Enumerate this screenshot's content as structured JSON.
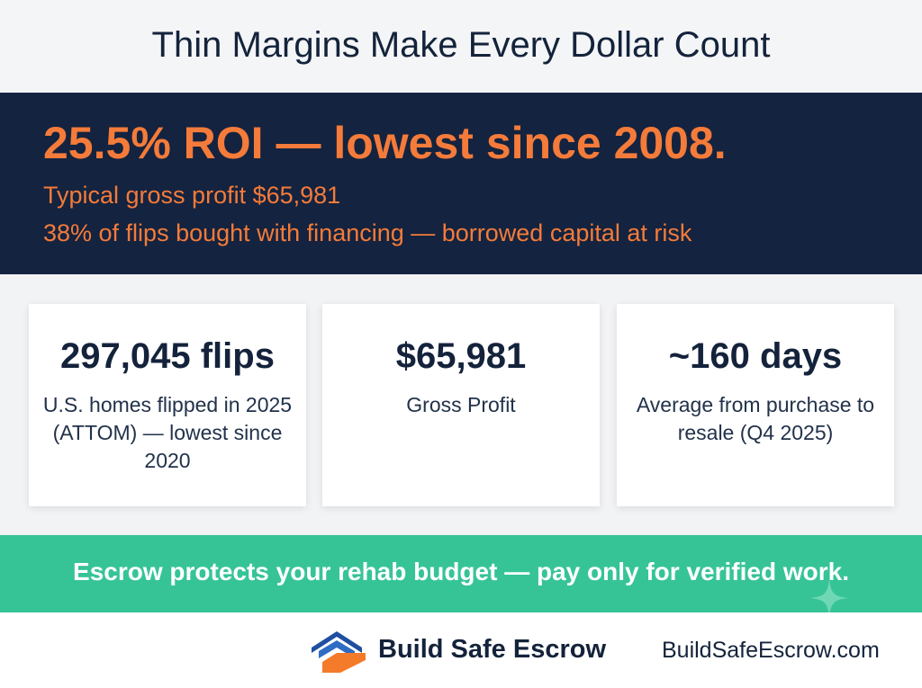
{
  "header": {
    "title": "Thin Margins Make Every Dollar Count"
  },
  "highlight": {
    "headline": "25.5% ROI — lowest since 2008.",
    "lines": [
      "Typical gross profit $65,981",
      "38% of flips bought with financing — borrowed capital at risk"
    ]
  },
  "cards": [
    {
      "value": "297,045 flips",
      "description": "U.S. homes flipped in 2025 (ATTOM) — lowest since 2020"
    },
    {
      "value": "$65,981",
      "description": "Gross Profit"
    },
    {
      "value": "~160 days",
      "description": "Average from purchase to resale (Q4 2025)"
    }
  ],
  "banner": {
    "text": "Escrow protects your rehab budget — pay only for verified work."
  },
  "footer": {
    "brand": "Build Safe Escrow",
    "url": "BuildSafeEscrow.com"
  }
}
